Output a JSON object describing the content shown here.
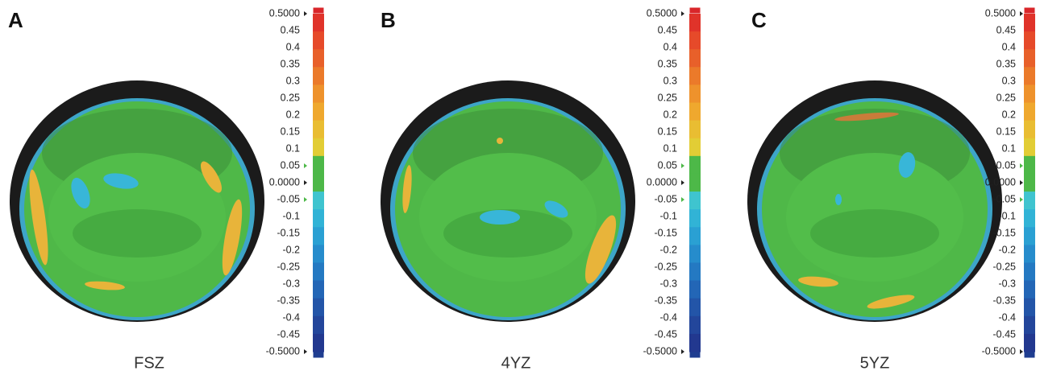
{
  "panels": [
    {
      "letter": "A",
      "caption": "FSZ"
    },
    {
      "letter": "B",
      "caption": "4YZ"
    },
    {
      "letter": "C",
      "caption": "5YZ"
    }
  ],
  "color_scale": [
    "0.5000",
    "0.45",
    "0.4",
    "0.35",
    "0.3",
    "0.25",
    "0.2",
    "0.15",
    "0.1",
    "0.05",
    "0.0000",
    "-0.05",
    "-0.1",
    "-0.15",
    "-0.2",
    "-0.25",
    "-0.3",
    "-0.35",
    "-0.4",
    "-0.45",
    "-0.5000"
  ]
}
